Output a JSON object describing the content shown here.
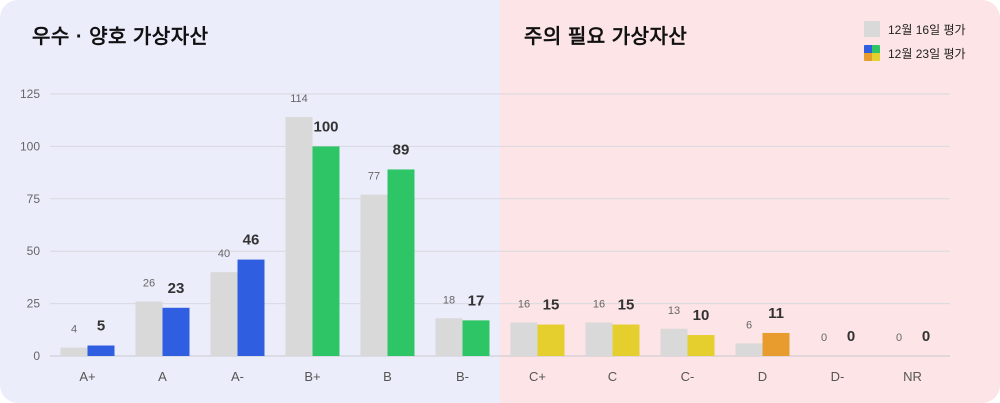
{
  "sections": {
    "good": "우수 · 양호 가상자산",
    "caution": "주의 필요 가상자산"
  },
  "legend": {
    "previous": "12월 16일 평가",
    "current": "12월 23일 평가"
  },
  "colors": {
    "previous": "#d9d9d9",
    "blue": "#2f5ee0",
    "green": "#2ec566",
    "yellow": "#e4cf2e",
    "orange": "#e89c2e",
    "left_panel": "#ecedfa",
    "right_panel": "#fde4e6"
  },
  "chart_data": {
    "type": "bar",
    "categories": [
      "A+",
      "A",
      "A-",
      "B+",
      "B",
      "B-",
      "C+",
      "C",
      "C-",
      "D",
      "D-",
      "NR"
    ],
    "series": [
      {
        "name": "12월 16일 평가",
        "values": [
          4,
          26,
          40,
          114,
          77,
          18,
          16,
          16,
          13,
          6,
          0,
          0
        ],
        "color": "#d9d9d9"
      },
      {
        "name": "12월 23일 평가",
        "values": [
          5,
          23,
          46,
          100,
          89,
          17,
          15,
          15,
          10,
          11,
          0,
          0
        ],
        "colors": [
          "#2f5ee0",
          "#2f5ee0",
          "#2f5ee0",
          "#2ec566",
          "#2ec566",
          "#2ec566",
          "#e4cf2e",
          "#e4cf2e",
          "#e4cf2e",
          "#e89c2e",
          "#e89c2e",
          "#e89c2e"
        ]
      }
    ],
    "yticks": [
      0,
      25,
      50,
      75,
      100,
      125
    ],
    "ylim": [
      0,
      125
    ],
    "grid": true,
    "legend_position": "top-right"
  }
}
